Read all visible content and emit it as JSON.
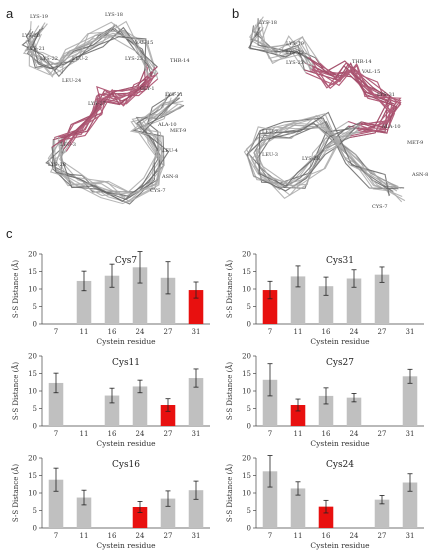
{
  "panels": {
    "a": {
      "label": "a",
      "residue_labels": [
        "LYS-18",
        "LYS-19",
        "LYS-20",
        "LYS-21",
        "LYS-22",
        "VAL-15",
        "LYS-23",
        "THR-14",
        "LEU-2",
        "LEU-24",
        "LYS-27",
        "GLY-1",
        "LYS-31",
        "ALA-10",
        "LEU-3",
        "MET-9",
        "LYS-28",
        "LEU-4",
        "ASN-8",
        "CYS-7"
      ]
    },
    "b": {
      "label": "b",
      "residue_labels": [
        "LYS-18",
        "LYS-19",
        "LYS-22",
        "LYS-23",
        "VAL-15",
        "THR-14",
        "LYS-31",
        "ALA-10",
        "LEU-2",
        "LYS-28",
        "MET-9",
        "LEU-3",
        "ASN-8",
        "CYS-7"
      ]
    },
    "c": {
      "label": "c"
    }
  },
  "colors": {
    "bar_default": "#c0c0c0",
    "bar_highlight": "#e8100f",
    "struct_gray": "#a9a9a9",
    "struct_dark": "#666666",
    "struct_red": "#b5456a"
  },
  "chart_data": [
    {
      "type": "bar",
      "title": "Cys7",
      "categories": [
        "7",
        "11",
        "16",
        "24",
        "27",
        "31"
      ],
      "values": [
        null,
        12.3,
        13.8,
        16.2,
        13.2,
        9.7
      ],
      "errors": [
        null,
        2.8,
        3.3,
        4.5,
        4.6,
        2.3
      ],
      "highlight": "31",
      "xlabel": "Cystein residue",
      "ylabel": "S-S Distance (Å)",
      "ylim": [
        0,
        20
      ],
      "yticks": [
        0,
        5,
        10,
        15,
        20
      ]
    },
    {
      "type": "bar",
      "title": "Cys31",
      "categories": [
        "7",
        "11",
        "16",
        "24",
        "27",
        "31"
      ],
      "values": [
        9.7,
        13.6,
        10.8,
        13.0,
        14.1,
        null
      ],
      "errors": [
        2.5,
        3.0,
        2.6,
        2.5,
        2.2,
        null
      ],
      "highlight": "7",
      "xlabel": "Cystein residue",
      "ylabel": "S-S Distance (Å)",
      "ylim": [
        0,
        20
      ],
      "yticks": [
        0,
        5,
        10,
        15,
        20
      ]
    },
    {
      "type": "bar",
      "title": "Cys11",
      "categories": [
        "7",
        "11",
        "16",
        "24",
        "27",
        "31"
      ],
      "values": [
        12.3,
        null,
        8.7,
        11.3,
        6.0,
        13.7
      ],
      "errors": [
        2.8,
        null,
        2.1,
        1.8,
        1.8,
        2.6
      ],
      "highlight": "27",
      "xlabel": "Cystein residue",
      "ylabel": "S-S Distance (Å)",
      "ylim": [
        0,
        20
      ],
      "yticks": [
        0,
        5,
        10,
        15,
        20
      ]
    },
    {
      "type": "bar",
      "title": "Cys27",
      "categories": [
        "7",
        "11",
        "16",
        "24",
        "27",
        "31"
      ],
      "values": [
        13.2,
        6.0,
        8.6,
        8.1,
        null,
        14.2
      ],
      "errors": [
        4.6,
        1.7,
        2.3,
        1.2,
        null,
        2.0
      ],
      "highlight": "11",
      "xlabel": "Cystein residue",
      "ylabel": "S-S Distance (Å)",
      "ylim": [
        0,
        20
      ],
      "yticks": [
        0,
        5,
        10,
        15,
        20
      ]
    },
    {
      "type": "bar",
      "title": "Cys16",
      "categories": [
        "7",
        "11",
        "16",
        "24",
        "27",
        "31"
      ],
      "values": [
        13.8,
        8.7,
        null,
        6.0,
        8.4,
        10.8
      ],
      "errors": [
        3.3,
        2.1,
        null,
        1.6,
        2.2,
        2.6
      ],
      "highlight": "24",
      "xlabel": "Cystein residue",
      "ylabel": "S-S Distance (Å)",
      "ylim": [
        0,
        20
      ],
      "yticks": [
        0,
        5,
        10,
        15,
        20
      ]
    },
    {
      "type": "bar",
      "title": "Cys24",
      "categories": [
        "7",
        "11",
        "16",
        "24",
        "27",
        "31"
      ],
      "values": [
        16.2,
        11.3,
        6.1,
        null,
        8.1,
        13.0
      ],
      "errors": [
        4.5,
        1.9,
        1.8,
        null,
        1.2,
        2.5
      ],
      "highlight": "16",
      "xlabel": "Cystein residue",
      "ylabel": "S-S Distance (Å)",
      "ylim": [
        0,
        20
      ],
      "yticks": [
        0,
        5,
        10,
        15,
        20
      ]
    }
  ]
}
